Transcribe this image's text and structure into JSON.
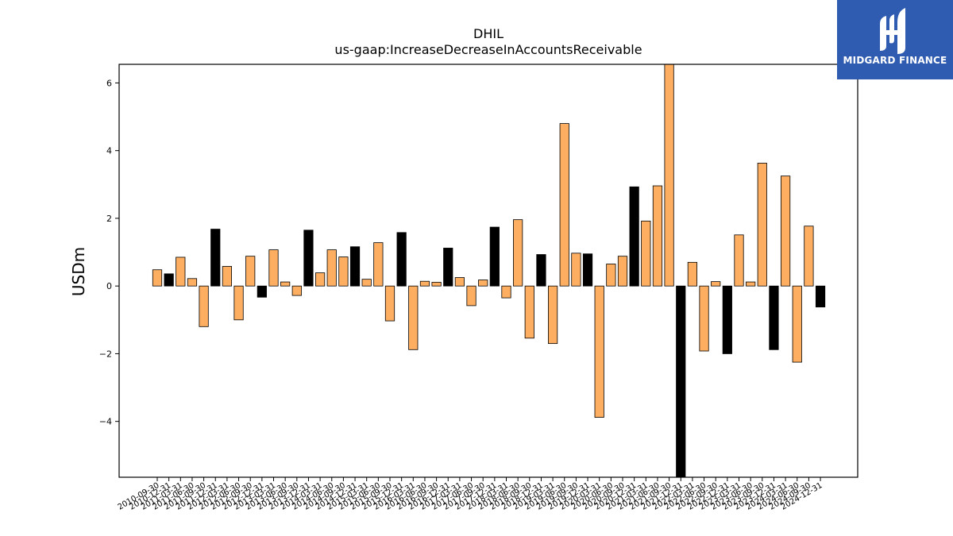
{
  "chart_data": {
    "type": "bar",
    "title": "DHIL",
    "subtitle": "us-gaap:IncreaseDecreaseInAccountsReceivable",
    "ylabel": "USDm",
    "xlabel": "",
    "ylim": [
      -5.65,
      6.55
    ],
    "yticks": [
      -4,
      -2,
      0,
      2,
      4,
      6
    ],
    "grid": false,
    "colors": {
      "quarter": "#fdae61",
      "annual": "#000000",
      "edge": "#000000"
    },
    "categories": [
      "2010-09-30",
      "2010-12-31",
      "2011-03-31",
      "2011-06-30",
      "2011-09-30",
      "2011-12-31",
      "2012-03-31",
      "2012-06-30",
      "2012-09-30",
      "2012-12-31",
      "2013-03-31",
      "2013-06-30",
      "2013-09-30",
      "2013-12-31",
      "2014-03-31",
      "2014-06-30",
      "2014-09-30",
      "2014-12-31",
      "2015-03-31",
      "2015-06-30",
      "2015-09-30",
      "2015-12-31",
      "2016-03-31",
      "2016-06-30",
      "2016-09-30",
      "2016-12-31",
      "2017-03-31",
      "2017-06-30",
      "2017-09-30",
      "2017-12-31",
      "2018-03-31",
      "2018-06-30",
      "2018-09-30",
      "2018-12-31",
      "2019-03-31",
      "2019-06-30",
      "2019-09-30",
      "2019-12-31",
      "2020-03-31",
      "2020-06-30",
      "2020-09-30",
      "2020-12-31",
      "2021-03-31",
      "2021-06-30",
      "2021-09-30",
      "2021-12-31",
      "2022-03-31",
      "2022-06-30",
      "2022-09-30",
      "2022-12-31",
      "2023-03-31",
      "2023-06-30",
      "2023-09-30",
      "2023-12-31",
      "2024-03-31",
      "2024-06-30",
      "2024-09-30",
      "2024-12-31"
    ],
    "values": [
      0.48,
      0.36,
      0.85,
      0.22,
      -1.2,
      1.68,
      0.58,
      -1.0,
      0.88,
      -0.33,
      1.07,
      0.12,
      -0.28,
      1.65,
      0.39,
      1.07,
      0.86,
      1.16,
      0.2,
      1.28,
      -1.03,
      1.58,
      -1.88,
      0.14,
      0.11,
      1.12,
      0.25,
      -0.58,
      0.18,
      1.74,
      -0.35,
      1.96,
      -1.54,
      0.93,
      -1.7,
      4.8,
      0.97,
      0.95,
      -3.88,
      0.65,
      0.88,
      2.93,
      1.92,
      2.96,
      6.6,
      -5.8,
      0.7,
      -1.92,
      0.13,
      -2.0,
      1.51,
      0.12,
      3.63,
      -1.88,
      3.25,
      -2.25,
      1.77,
      -0.62
    ],
    "annual": [
      false,
      true,
      false,
      false,
      false,
      true,
      false,
      false,
      false,
      true,
      false,
      false,
      false,
      true,
      false,
      false,
      false,
      true,
      false,
      false,
      false,
      true,
      false,
      false,
      false,
      true,
      false,
      false,
      false,
      true,
      false,
      false,
      false,
      true,
      false,
      false,
      false,
      true,
      false,
      false,
      false,
      true,
      false,
      false,
      false,
      true,
      false,
      false,
      false,
      true,
      false,
      false,
      false,
      true,
      false,
      false,
      false,
      true
    ]
  },
  "logo": {
    "text": "MIDGARD FINANCE"
  }
}
